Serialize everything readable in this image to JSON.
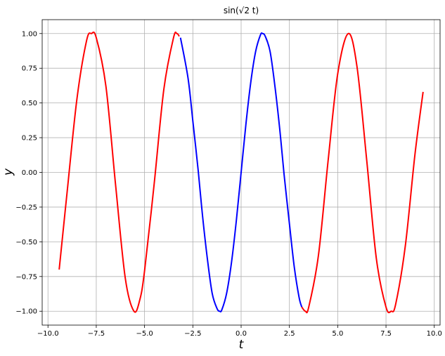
{
  "chart_data": {
    "type": "line",
    "title": "sin(√2 t)",
    "xlabel": "t",
    "ylabel": "y",
    "xlim": [
      -10.3,
      10.3
    ],
    "ylim": [
      -1.1,
      1.1
    ],
    "xticks": [
      -10.0,
      -7.5,
      -5.0,
      -2.5,
      0.0,
      2.5,
      5.0,
      7.5,
      10.0
    ],
    "xtick_labels": [
      "−10.0",
      "−7.5",
      "−5.0",
      "−2.5",
      "0.0",
      "2.5",
      "5.0",
      "7.5",
      "10.0"
    ],
    "yticks": [
      -1.0,
      -0.75,
      -0.5,
      -0.25,
      0.0,
      0.25,
      0.5,
      0.75,
      1.0
    ],
    "ytick_labels": [
      "−1.00",
      "−0.75",
      "−0.50",
      "−0.25",
      "0.00",
      "0.25",
      "0.50",
      "0.75",
      "1.00"
    ],
    "grid": true,
    "series": [
      {
        "color": "#ff0000",
        "x": [
          -9.42,
          -9.0,
          -8.5,
          -8.0,
          -7.75,
          -7.5,
          -7.0,
          -6.5,
          -6.0,
          -5.55,
          -5.25,
          -5.0,
          -4.5,
          -4.0,
          -3.5,
          -3.33,
          -3.2
        ],
        "y": [
          -0.7,
          -0.13,
          0.53,
          0.95,
          1.0,
          0.97,
          0.62,
          -0.09,
          -0.76,
          -1.0,
          -0.92,
          -0.71,
          -0.08,
          0.6,
          0.97,
          1.0,
          0.98
        ]
      },
      {
        "color": "#0000ff",
        "x": [
          -3.14,
          -2.75,
          -2.5,
          -2.22,
          -2.0,
          -1.75,
          -1.5,
          -1.25,
          -1.11,
          -1.0,
          -0.75,
          -0.5,
          -0.25,
          0.0,
          0.25,
          0.5,
          0.75,
          1.0,
          1.11,
          1.25,
          1.5,
          1.75,
          2.0,
          2.22,
          2.5,
          2.75,
          3.0,
          3.14
        ],
        "y": [
          0.97,
          0.68,
          0.37,
          0.01,
          -0.31,
          -0.62,
          -0.87,
          -0.98,
          -1.0,
          -0.99,
          -0.87,
          -0.65,
          -0.35,
          0.0,
          0.35,
          0.65,
          0.87,
          0.99,
          1.0,
          0.98,
          0.87,
          0.62,
          0.31,
          -0.01,
          -0.37,
          -0.68,
          -0.9,
          -0.97
        ]
      },
      {
        "color": "#ff0000",
        "x": [
          3.14,
          3.33,
          3.5,
          4.0,
          4.5,
          5.0,
          5.55,
          6.0,
          6.5,
          7.0,
          7.5,
          7.77,
          8.0,
          8.5,
          9.0,
          9.42
        ],
        "y": [
          -0.97,
          -1.0,
          -0.97,
          -0.6,
          0.08,
          0.71,
          1.0,
          0.76,
          0.09,
          -0.62,
          -0.97,
          -1.0,
          -0.95,
          -0.53,
          0.13,
          0.58
        ]
      }
    ]
  }
}
